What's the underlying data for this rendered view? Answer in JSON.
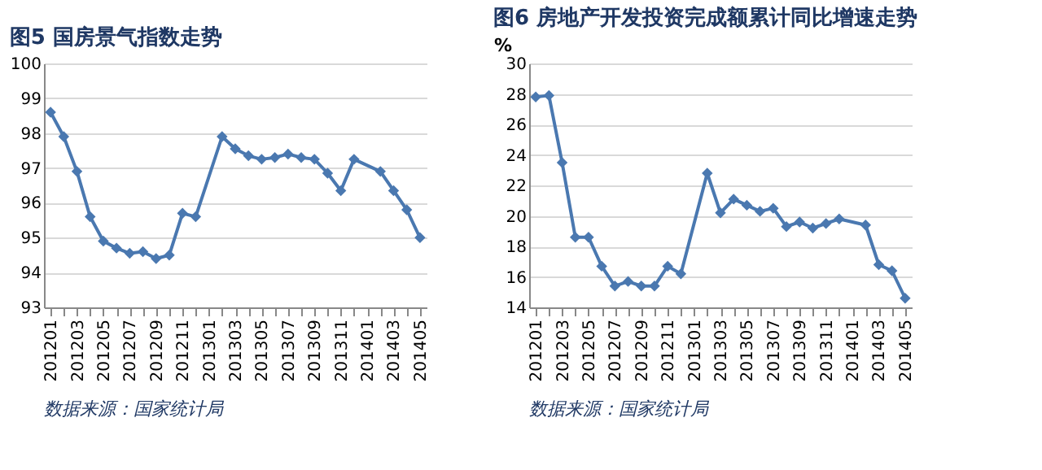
{
  "chart_data": [
    {
      "type": "line",
      "title": "图5 国房景气指数走势",
      "categories": [
        "201201",
        null,
        "201203",
        null,
        "201205",
        null,
        "201207",
        null,
        "201209",
        null,
        "201211",
        null,
        "201301",
        null,
        "201303",
        null,
        "201305",
        null,
        "201307",
        null,
        "201309",
        null,
        "201311",
        null,
        "201401",
        null,
        "201403",
        null,
        "201405"
      ],
      "series": [
        {
          "color": "#4a78b0",
          "values": [
            98.6,
            97.9,
            96.9,
            95.6,
            94.9,
            94.7,
            94.55,
            94.6,
            94.4,
            94.5,
            95.7,
            95.6,
            null,
            97.9,
            97.55,
            97.35,
            97.25,
            97.3,
            97.4,
            97.3,
            97.25,
            96.85,
            96.35,
            97.25,
            null,
            96.9,
            96.35,
            95.8,
            95.0
          ]
        }
      ],
      "ylim": [
        93,
        100
      ],
      "yticks": [
        93,
        94,
        95,
        96,
        97,
        98,
        99,
        100
      ],
      "grid": "y",
      "marker": "diamond",
      "line_style": "solid",
      "annotations": [
        "数据来源：国家统计局"
      ]
    },
    {
      "type": "line",
      "title": "图6 房地产开发投资完成额累计同比增速走势",
      "ylabel": "%",
      "categories": [
        "201201",
        null,
        "201203",
        null,
        "201205",
        null,
        "201207",
        null,
        "201209",
        null,
        "201211",
        null,
        "201301",
        null,
        "201303",
        null,
        "201305",
        null,
        "201307",
        null,
        "201309",
        null,
        "201311",
        null,
        "201401",
        null,
        "201403",
        null,
        "201405"
      ],
      "series": [
        {
          "color": "#4a78b0",
          "values": [
            27.8,
            27.9,
            23.5,
            18.6,
            18.6,
            16.7,
            15.4,
            15.7,
            15.4,
            15.4,
            16.7,
            16.2,
            null,
            22.8,
            20.2,
            21.1,
            20.7,
            20.3,
            20.5,
            19.3,
            19.6,
            19.2,
            19.5,
            19.8,
            null,
            19.4,
            16.8,
            16.4,
            14.6
          ]
        }
      ],
      "ylim": [
        14,
        30
      ],
      "yticks": [
        14,
        16,
        18,
        20,
        22,
        24,
        26,
        28,
        30
      ],
      "grid": "y",
      "marker": "diamond",
      "line_style": "solid",
      "annotations": [
        "数据来源：国家统计局"
      ]
    }
  ]
}
